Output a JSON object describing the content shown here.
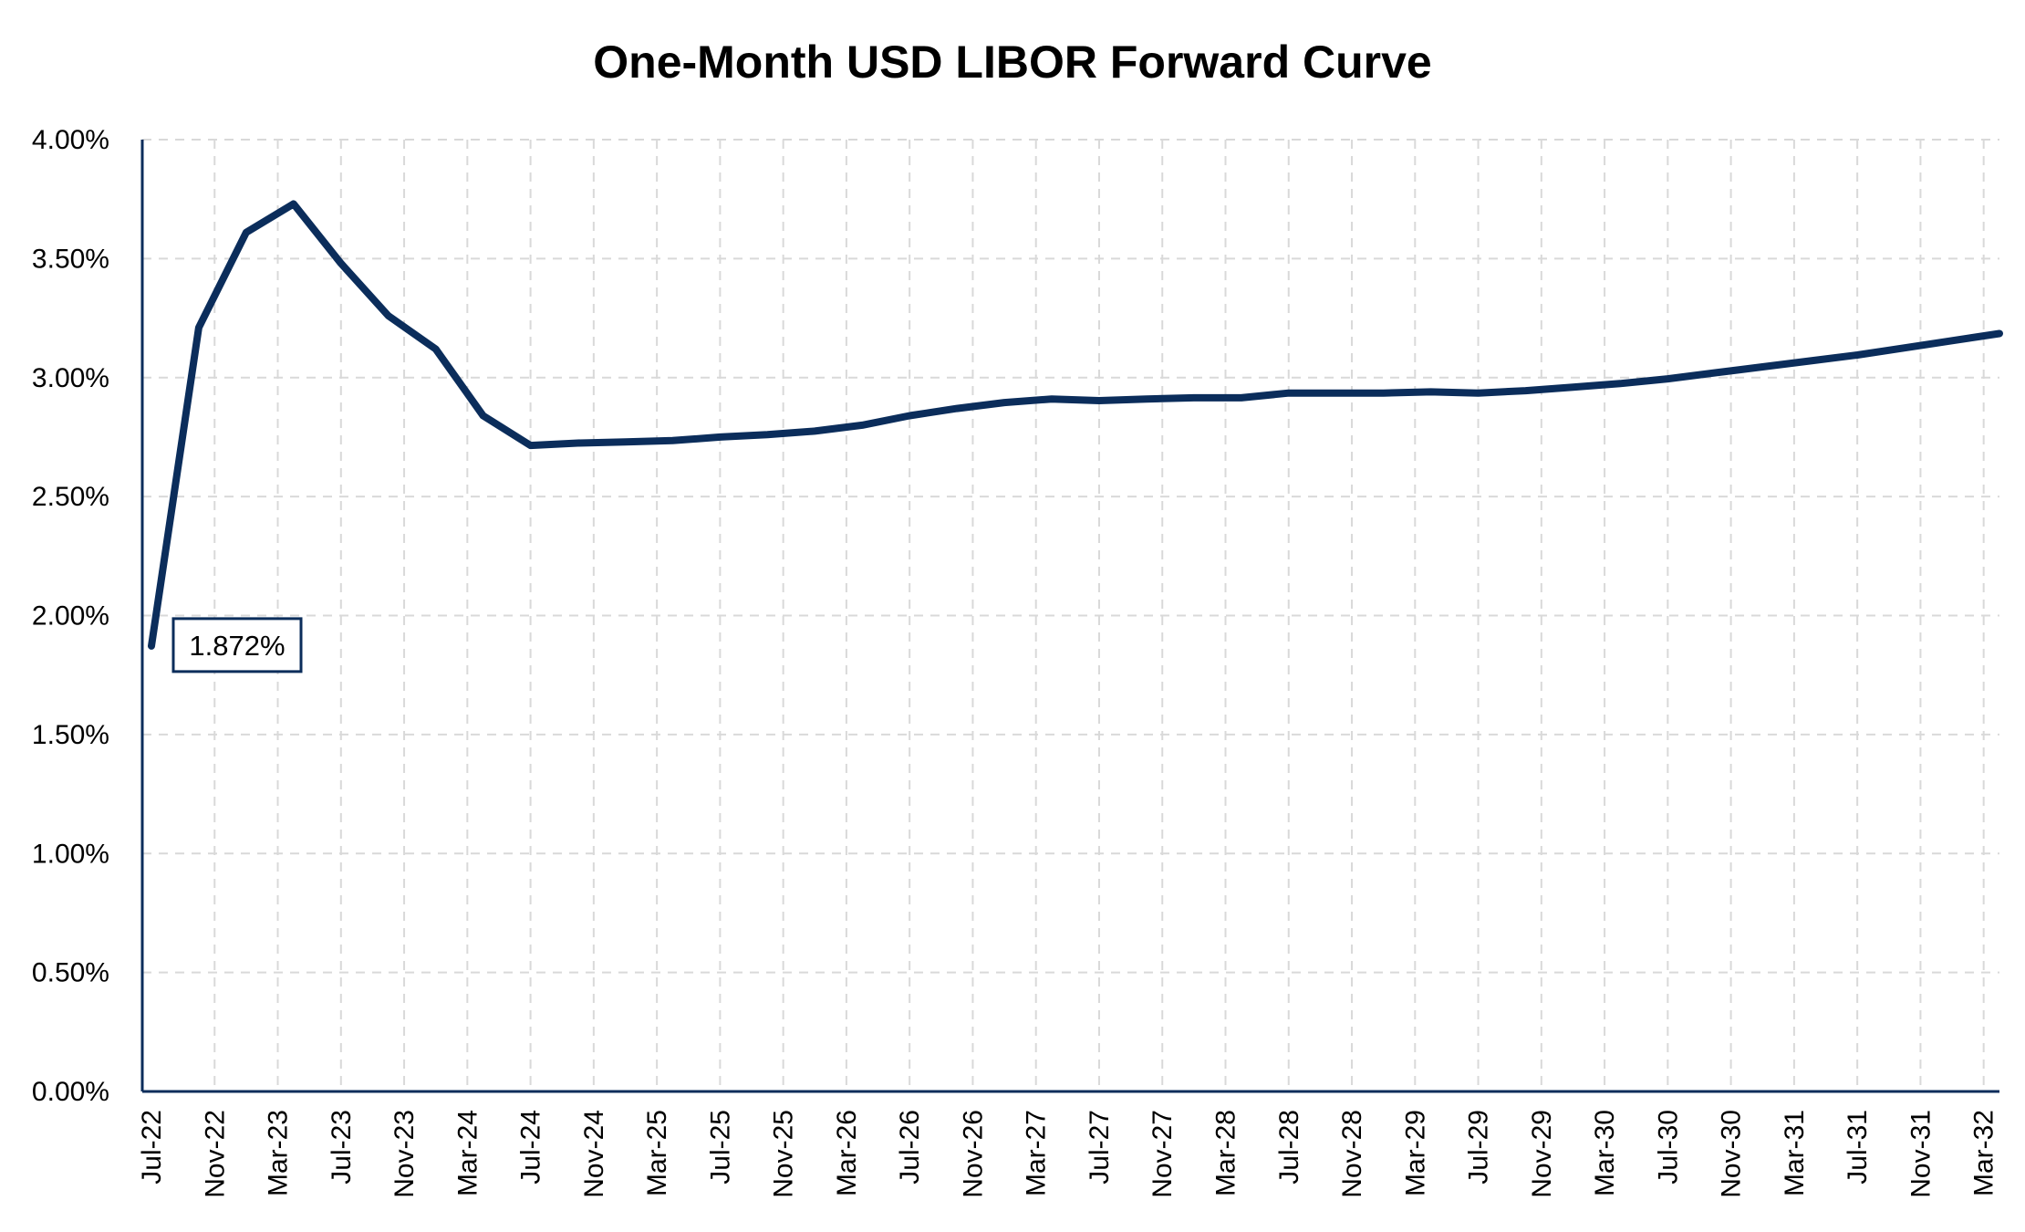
{
  "chart_data": {
    "type": "line",
    "title": "One-Month USD LIBOR Forward Curve",
    "xlabel": "",
    "ylabel": "",
    "ylim": [
      0,
      4
    ],
    "y_ticks": [
      "0.00%",
      "0.50%",
      "1.00%",
      "1.50%",
      "2.00%",
      "2.50%",
      "3.00%",
      "3.50%",
      "4.00%"
    ],
    "y_tick_values": [
      0,
      0.5,
      1.0,
      1.5,
      2.0,
      2.5,
      3.0,
      3.5,
      4.0
    ],
    "x_ticks": [
      "Jul-22",
      "Nov-22",
      "Mar-23",
      "Jul-23",
      "Nov-23",
      "Mar-24",
      "Jul-24",
      "Nov-24",
      "Mar-25",
      "Jul-25",
      "Nov-25",
      "Mar-26",
      "Jul-26",
      "Nov-26",
      "Mar-27",
      "Jul-27",
      "Nov-27",
      "Mar-28",
      "Jul-28",
      "Nov-28",
      "Mar-29",
      "Jul-29",
      "Nov-29",
      "Mar-30",
      "Jul-30",
      "Nov-30",
      "Mar-31",
      "Jul-31",
      "Nov-31",
      "Mar-32"
    ],
    "grid": true,
    "legend": "none",
    "line_color": "#0b2d5b",
    "series": [
      {
        "x": [
          "2022-07",
          "2022-10",
          "2023-01",
          "2023-04",
          "2023-07",
          "2023-10",
          "2024-01",
          "2024-04",
          "2024-07",
          "2024-10",
          "2025-01",
          "2025-04",
          "2025-07",
          "2025-10",
          "2026-01",
          "2026-04",
          "2026-07",
          "2026-10",
          "2027-01",
          "2027-04",
          "2027-07",
          "2027-10",
          "2028-01",
          "2028-04",
          "2028-07",
          "2028-10",
          "2029-01",
          "2029-04",
          "2029-07",
          "2029-10",
          "2030-01",
          "2030-04",
          "2030-07",
          "2030-10",
          "2031-01",
          "2031-04",
          "2031-07",
          "2031-10",
          "2032-01",
          "2032-04"
        ],
        "values": [
          1.872,
          3.21,
          3.61,
          3.73,
          3.48,
          3.26,
          3.12,
          2.84,
          2.715,
          2.725,
          2.73,
          2.735,
          2.75,
          2.76,
          2.775,
          2.8,
          2.84,
          2.87,
          2.895,
          2.91,
          2.903,
          2.91,
          2.915,
          2.915,
          2.935,
          2.935,
          2.935,
          2.94,
          2.935,
          2.945,
          2.96,
          2.975,
          2.995,
          3.02,
          3.045,
          3.07,
          3.095,
          3.125,
          3.155,
          3.185
        ]
      }
    ],
    "data_labels": [
      {
        "text": "1.872%",
        "point_index": 0
      }
    ]
  }
}
